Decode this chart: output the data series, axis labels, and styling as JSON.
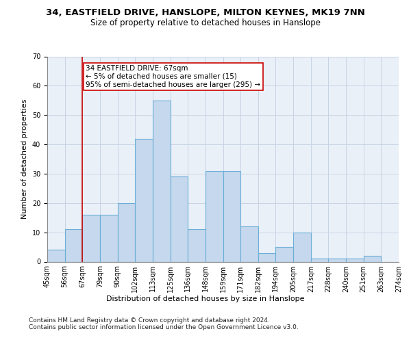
{
  "title_line1": "34, EASTFIELD DRIVE, HANSLOPE, MILTON KEYNES, MK19 7NN",
  "title_line2": "Size of property relative to detached houses in Hanslope",
  "xlabel": "Distribution of detached houses by size in Hanslope",
  "ylabel": "Number of detached properties",
  "footer_line1": "Contains HM Land Registry data © Crown copyright and database right 2024.",
  "footer_line2": "Contains public sector information licensed under the Open Government Licence v3.0.",
  "bin_labels": [
    "45sqm",
    "56sqm",
    "67sqm",
    "79sqm",
    "90sqm",
    "102sqm",
    "113sqm",
    "125sqm",
    "136sqm",
    "148sqm",
    "159sqm",
    "171sqm",
    "182sqm",
    "194sqm",
    "205sqm",
    "217sqm",
    "228sqm",
    "240sqm",
    "251sqm",
    "263sqm",
    "274sqm"
  ],
  "bar_heights": [
    4,
    11,
    16,
    16,
    20,
    42,
    55,
    29,
    11,
    31,
    31,
    12,
    3,
    5,
    10,
    1,
    1,
    1,
    2,
    0
  ],
  "bar_color": "#c5d8ed",
  "bar_edgecolor": "#6aaed6",
  "bar_linewidth": 0.8,
  "annotation_box_text": "34 EASTFIELD DRIVE: 67sqm\n← 5% of detached houses are smaller (15)\n95% of semi-detached houses are larger (295) →",
  "annotation_box_color": "#ffffff",
  "annotation_box_edgecolor": "#cc0000",
  "vline_color": "#cc0000",
  "vline_x_index": 2,
  "ylim": [
    0,
    70
  ],
  "yticks": [
    0,
    10,
    20,
    30,
    40,
    50,
    60,
    70
  ],
  "grid_color": "#c8d4e3",
  "background_color": "#eaf0f8",
  "title_fontsize": 9.5,
  "subtitle_fontsize": 8.5,
  "tick_fontsize": 7,
  "label_fontsize": 8,
  "annotation_fontsize": 7.5,
  "footer_fontsize": 6.5
}
